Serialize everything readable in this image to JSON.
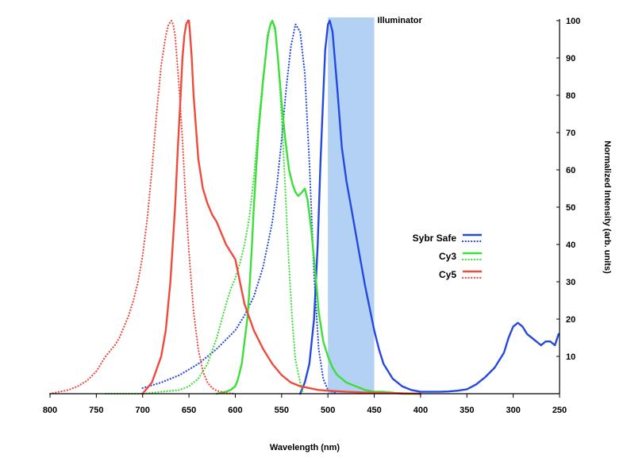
{
  "chart_data": {
    "type": "line",
    "xlabel": "Wavelength (nm)",
    "ylabel": "Normalized Intensity (arb. units)",
    "xlim": [
      800,
      250
    ],
    "x_reversed": true,
    "ylim": [
      0,
      100
    ],
    "x_ticks": [
      800,
      750,
      700,
      650,
      600,
      550,
      500,
      450,
      400,
      350,
      300,
      250
    ],
    "y_ticks": [
      10,
      20,
      30,
      40,
      50,
      60,
      70,
      80,
      90,
      100
    ],
    "grid": false,
    "legend_position": "right-middle",
    "band": {
      "label": "Illuminator",
      "x_range": [
        500,
        450
      ],
      "color": "#b3d1f2"
    },
    "series": [
      {
        "name": "Sybr Safe",
        "style": "solid",
        "color": "#2549e0",
        "x": [
          530,
          525,
          520,
          515,
          511,
          508,
          505,
          503,
          500,
          498,
          495,
          490,
          485,
          480,
          475,
          470,
          465,
          460,
          455,
          450,
          445,
          440,
          430,
          420,
          410,
          400,
          390,
          380,
          370,
          360,
          350,
          340,
          330,
          320,
          310,
          305,
          300,
          295,
          290,
          285,
          280,
          275,
          270,
          265,
          260,
          255,
          251
        ],
        "y": [
          0,
          3,
          8,
          20,
          40,
          62,
          80,
          92,
          99,
          100,
          97,
          82,
          66,
          57,
          50,
          43,
          36,
          29,
          23,
          17,
          12,
          8,
          4,
          2,
          1,
          0.5,
          0.5,
          0.5,
          0.6,
          0.8,
          1.2,
          2.5,
          4.5,
          7,
          11,
          15,
          18,
          19,
          18,
          16,
          15,
          14,
          13,
          14,
          14,
          13,
          16
        ]
      },
      {
        "name": "",
        "style": "dotted",
        "color": "#2549e0",
        "x": [
          700,
          680,
          660,
          640,
          620,
          600,
          590,
          580,
          570,
          560,
          555,
          550,
          545,
          540,
          535,
          530,
          525,
          520,
          515,
          510,
          505,
          500,
          495,
          490
        ],
        "y": [
          1.5,
          3,
          5,
          8,
          12,
          17,
          21,
          26,
          34,
          46,
          56,
          68,
          82,
          93,
          99,
          97,
          86,
          62,
          32,
          12,
          4,
          1,
          0.5,
          0
        ]
      },
      {
        "name": "Cy3",
        "style": "solid",
        "color": "#3ede3a",
        "x": [
          620,
          610,
          605,
          600,
          597,
          593,
          590,
          587,
          585,
          582,
          580,
          575,
          570,
          567,
          565,
          562,
          560,
          557,
          554,
          550,
          546,
          542,
          538,
          535,
          532,
          528,
          525,
          522,
          518,
          515,
          512,
          510,
          505,
          500,
          495,
          490,
          485,
          480,
          470,
          460,
          450,
          440,
          420,
          400
        ],
        "y": [
          0,
          0.5,
          1,
          2,
          4,
          8,
          14,
          20,
          27,
          40,
          50,
          70,
          84,
          91,
          96,
          99,
          100,
          98,
          90,
          78,
          68,
          60,
          56,
          54,
          53,
          54,
          55,
          52,
          44,
          36,
          28,
          22,
          14,
          10,
          7,
          5,
          4,
          3,
          2,
          1,
          0.5,
          0.5,
          0,
          0
        ]
      },
      {
        "name": "",
        "style": "dotted",
        "color": "#3ede3a",
        "x": [
          740,
          720,
          700,
          680,
          660,
          650,
          640,
          630,
          620,
          610,
          605,
          600,
          595,
          590,
          585,
          580,
          575,
          570,
          566,
          563,
          560,
          556,
          553,
          550,
          547,
          544,
          541,
          538,
          535,
          530,
          527
        ],
        "y": [
          0,
          0,
          0,
          0.5,
          1,
          2,
          4,
          8,
          15,
          24,
          28,
          31,
          35,
          40,
          47,
          58,
          72,
          85,
          93,
          98,
          100,
          96,
          87,
          74,
          60,
          44,
          30,
          18,
          9,
          3,
          0
        ]
      },
      {
        "name": "Cy5",
        "style": "solid",
        "color": "#ef4a3c",
        "x": [
          700,
          690,
          680,
          675,
          670,
          665,
          662,
          659,
          657,
          655,
          653,
          651,
          650,
          649,
          647,
          645,
          642,
          640,
          635,
          630,
          625,
          620,
          615,
          610,
          605,
          600,
          595,
          590,
          580,
          570,
          560,
          550,
          540,
          530,
          520,
          510,
          500,
          480,
          460,
          440,
          420,
          400
        ],
        "y": [
          0,
          3,
          10,
          17,
          30,
          50,
          66,
          80,
          90,
          96,
          99,
          100,
          100,
          97,
          90,
          80,
          70,
          63,
          55,
          51,
          48,
          46,
          43,
          40,
          38,
          36,
          30,
          24,
          17,
          12,
          8,
          5,
          3,
          2,
          1.5,
          1,
          0.8,
          0.5,
          0.3,
          0.2,
          0.1,
          0
        ]
      },
      {
        "name": "",
        "style": "dotted",
        "color": "#ef4a3c",
        "x": [
          800,
          790,
          780,
          770,
          760,
          750,
          745,
          740,
          735,
          730,
          725,
          720,
          715,
          710,
          705,
          700,
          695,
          690,
          685,
          680,
          675,
          672,
          669,
          667,
          665,
          663,
          660,
          657,
          654,
          650,
          645,
          640,
          635,
          630,
          625,
          620,
          610,
          600
        ],
        "y": [
          0,
          0.5,
          1,
          2,
          3.5,
          6,
          8,
          10,
          11.5,
          13,
          15,
          18,
          21,
          25,
          30,
          37,
          47,
          60,
          75,
          88,
          96,
          99,
          100,
          99,
          96,
          90,
          80,
          68,
          54,
          38,
          22,
          12,
          6,
          3,
          1.5,
          0.8,
          0.2,
          0
        ]
      }
    ]
  }
}
